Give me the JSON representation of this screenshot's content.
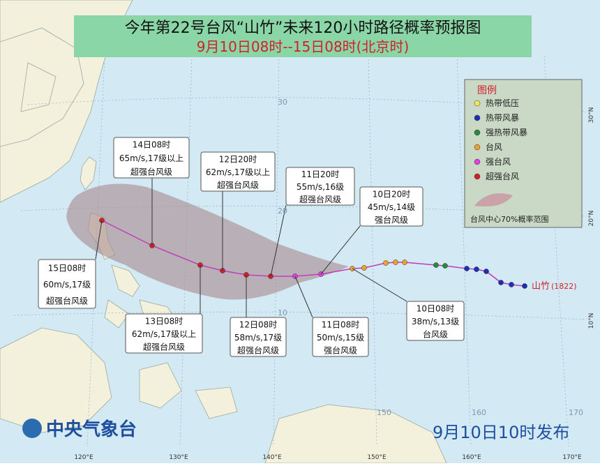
{
  "header": {
    "title": "今年第22号台风“山竹”未来120小时路径概率预报图",
    "subtitle": "9月10日08时--15日08时(北京时)"
  },
  "legend": {
    "title": "图例",
    "items": [
      "热带低压",
      "热带风暴",
      "强热带风暴",
      "台风",
      "强台风",
      "超强台风"
    ],
    "range_label": "台风中心70%概率范围"
  },
  "callouts": [
    {
      "time": "14日08时",
      "wind": "65m/s,17级以上",
      "level": "超强台风级"
    },
    {
      "time": "12日20时",
      "wind": "62m/s,17级以上",
      "level": "超强台风级"
    },
    {
      "time": "11日20时",
      "wind": "55m/s,16级",
      "level": "超强台风级"
    },
    {
      "time": "10日20时",
      "wind": "45m/s,14级",
      "level": "强台风级"
    },
    {
      "time": "15日08时",
      "wind": "60m/s,17级",
      "level": "超强台风级"
    },
    {
      "time": "13日08时",
      "wind": "62m/s,17级以上",
      "level": "超强台风级"
    },
    {
      "time": "12日08时",
      "wind": "58m/s,17级",
      "level": "超强台风级"
    },
    {
      "time": "11日08时",
      "wind": "50m/s,15级",
      "level": "强台风级"
    },
    {
      "time": "10日08时",
      "wind": "38m/s,13级",
      "level": "台风级"
    }
  ],
  "storm_label": {
    "name": "山竹",
    "code": "(1822)"
  },
  "lat_labels_inner": [
    "30",
    "20",
    "10"
  ],
  "lat_labels_edge": [
    "30°N",
    "20°N",
    "10°N"
  ],
  "lon_labels_inner": [
    "150",
    "160",
    "170"
  ],
  "lon_labels": [
    "120°E",
    "130°E",
    "140°E",
    "150°E",
    "160°E",
    "170°E"
  ],
  "footer": {
    "agency": "中央气象台",
    "issued": "9月10日10时发布"
  }
}
